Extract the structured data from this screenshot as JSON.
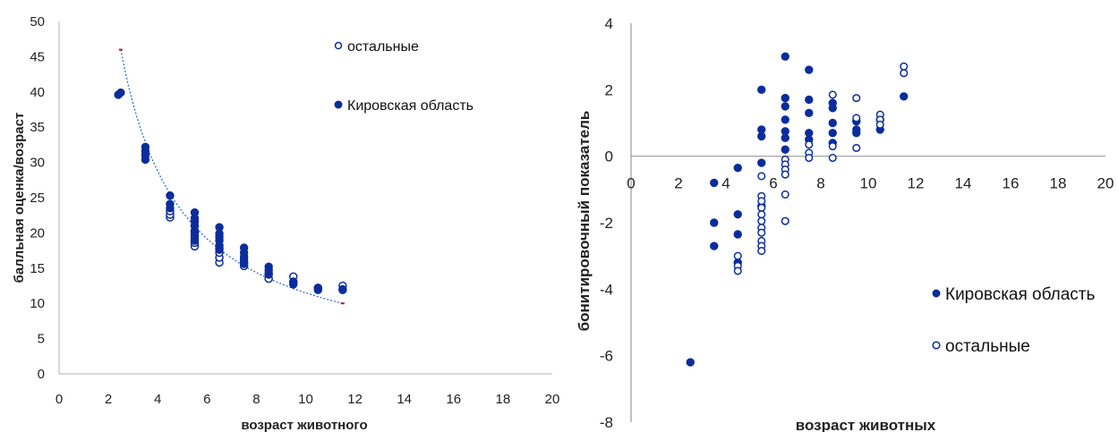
{
  "chart_data": [
    {
      "type": "scatter",
      "xlabel": "возраст животного",
      "ylabel": "балльная оценка/возраст",
      "xlim": [
        0,
        20
      ],
      "ylim": [
        0,
        50
      ],
      "xticks": [
        "0",
        "2",
        "4",
        "6",
        "8",
        "10",
        "12",
        "14",
        "16",
        "18",
        "20"
      ],
      "yticks": [
        "0",
        "5",
        "10",
        "15",
        "20",
        "25",
        "30",
        "35",
        "40",
        "45",
        "50"
      ],
      "grid": false,
      "legend_position": "top-right",
      "colors": {
        "kirov": "#0b2d9c",
        "other_edge": "#0b2d9c",
        "trend": "#2f6fd6"
      },
      "trendline": {
        "type": "power",
        "x": [
          2.5,
          11.5
        ],
        "y": [
          46,
          10
        ]
      },
      "series": [
        {
          "name": "остальные",
          "marker": "hollow",
          "points": [
            [
              4.5,
              22.2
            ],
            [
              4.5,
              22.6
            ],
            [
              4.5,
              23.1
            ],
            [
              5.5,
              18.1
            ],
            [
              5.5,
              18.6
            ],
            [
              5.5,
              19.2
            ],
            [
              5.5,
              20.1
            ],
            [
              6.5,
              15.8
            ],
            [
              6.5,
              16.5
            ],
            [
              6.5,
              17.2
            ],
            [
              6.5,
              17.8
            ],
            [
              7.5,
              15.3
            ],
            [
              7.5,
              15.8
            ],
            [
              8.5,
              13.5
            ],
            [
              8.5,
              14.2
            ],
            [
              9.5,
              13.0
            ],
            [
              9.5,
              13.8
            ],
            [
              10.5,
              12.2
            ],
            [
              11.5,
              12.5
            ],
            [
              11.5,
              12.0
            ]
          ]
        },
        {
          "name": "Кировская область",
          "marker": "filled",
          "points": [
            [
              2.4,
              39.6
            ],
            [
              2.5,
              39.9
            ],
            [
              3.5,
              30.4
            ],
            [
              3.5,
              31.0
            ],
            [
              3.5,
              31.6
            ],
            [
              3.5,
              32.2
            ],
            [
              4.5,
              23.5
            ],
            [
              4.5,
              24.1
            ],
            [
              4.5,
              25.3
            ],
            [
              5.5,
              18.9
            ],
            [
              5.5,
              19.6
            ],
            [
              5.5,
              20.3
            ],
            [
              5.5,
              21.0
            ],
            [
              5.5,
              21.6
            ],
            [
              5.5,
              22.1
            ],
            [
              5.5,
              22.9
            ],
            [
              6.5,
              17.6
            ],
            [
              6.5,
              18.2
            ],
            [
              6.5,
              18.9
            ],
            [
              6.5,
              19.4
            ],
            [
              6.5,
              19.9
            ],
            [
              6.5,
              20.8
            ],
            [
              7.5,
              15.6
            ],
            [
              7.5,
              16.1
            ],
            [
              7.5,
              16.6
            ],
            [
              7.5,
              17.2
            ],
            [
              7.5,
              17.9
            ],
            [
              8.5,
              14.1
            ],
            [
              8.5,
              14.7
            ],
            [
              8.5,
              15.2
            ],
            [
              9.5,
              12.7
            ],
            [
              9.5,
              13.1
            ],
            [
              10.5,
              11.9
            ],
            [
              10.5,
              12.2
            ],
            [
              11.5,
              11.9
            ]
          ]
        }
      ]
    },
    {
      "type": "scatter",
      "xlabel": "возраст животных",
      "ylabel": "бонитировочный показатель",
      "xlim": [
        0,
        20
      ],
      "ylim": [
        -8,
        4
      ],
      "xticks": [
        "0",
        "2",
        "4",
        "6",
        "8",
        "10",
        "12",
        "14",
        "16",
        "18",
        "20"
      ],
      "yticks": [
        "-8",
        "-6",
        "-4",
        "-2",
        "0",
        "2",
        "4"
      ],
      "grid": false,
      "legend_position": "bottom-right",
      "series": [
        {
          "name": "Кировская область",
          "marker": "filled",
          "points": [
            [
              2.5,
              -6.2
            ],
            [
              3.5,
              -0.8
            ],
            [
              3.5,
              -2.0
            ],
            [
              3.5,
              -2.7
            ],
            [
              4.5,
              -0.35
            ],
            [
              4.5,
              -1.75
            ],
            [
              4.5,
              -2.35
            ],
            [
              4.5,
              -3.2
            ],
            [
              5.5,
              2.0
            ],
            [
              5.5,
              0.8
            ],
            [
              5.5,
              0.6
            ],
            [
              5.5,
              -0.2
            ],
            [
              5.5,
              -1.5
            ],
            [
              6.5,
              3.0
            ],
            [
              6.5,
              1.75
            ],
            [
              6.5,
              1.5
            ],
            [
              6.5,
              1.1
            ],
            [
              6.5,
              0.75
            ],
            [
              6.5,
              0.55
            ],
            [
              6.5,
              0.2
            ],
            [
              7.5,
              2.6
            ],
            [
              7.5,
              1.7
            ],
            [
              7.5,
              1.3
            ],
            [
              7.5,
              0.7
            ],
            [
              7.5,
              0.5
            ],
            [
              8.5,
              1.6
            ],
            [
              8.5,
              1.45
            ],
            [
              8.5,
              1.0
            ],
            [
              8.5,
              0.7
            ],
            [
              8.5,
              0.4
            ],
            [
              9.5,
              1.05
            ],
            [
              9.5,
              0.8
            ],
            [
              9.5,
              0.7
            ],
            [
              10.5,
              1.1
            ],
            [
              10.5,
              0.8
            ],
            [
              11.5,
              1.8
            ]
          ]
        },
        {
          "name": "остальные",
          "marker": "hollow",
          "points": [
            [
              4.5,
              -3.0
            ],
            [
              4.5,
              -3.3
            ],
            [
              4.5,
              -3.45
            ],
            [
              5.5,
              -0.6
            ],
            [
              5.5,
              -1.2
            ],
            [
              5.5,
              -1.35
            ],
            [
              5.5,
              -1.55
            ],
            [
              5.5,
              -1.75
            ],
            [
              5.5,
              -1.95
            ],
            [
              5.5,
              -2.15
            ],
            [
              5.5,
              -2.3
            ],
            [
              5.5,
              -2.55
            ],
            [
              5.5,
              -2.7
            ],
            [
              5.5,
              -2.85
            ],
            [
              6.5,
              -0.1
            ],
            [
              6.5,
              -0.25
            ],
            [
              6.5,
              -0.4
            ],
            [
              6.5,
              -0.55
            ],
            [
              6.5,
              -1.15
            ],
            [
              6.5,
              -1.95
            ],
            [
              7.5,
              0.35
            ],
            [
              7.5,
              0.1
            ],
            [
              7.5,
              -0.05
            ],
            [
              8.5,
              1.85
            ],
            [
              8.5,
              0.3
            ],
            [
              8.5,
              -0.05
            ],
            [
              9.5,
              1.75
            ],
            [
              9.5,
              1.15
            ],
            [
              9.5,
              0.25
            ],
            [
              10.5,
              1.25
            ],
            [
              10.5,
              1.1
            ],
            [
              10.5,
              0.95
            ],
            [
              11.5,
              2.7
            ],
            [
              11.5,
              2.5
            ]
          ]
        }
      ]
    }
  ]
}
